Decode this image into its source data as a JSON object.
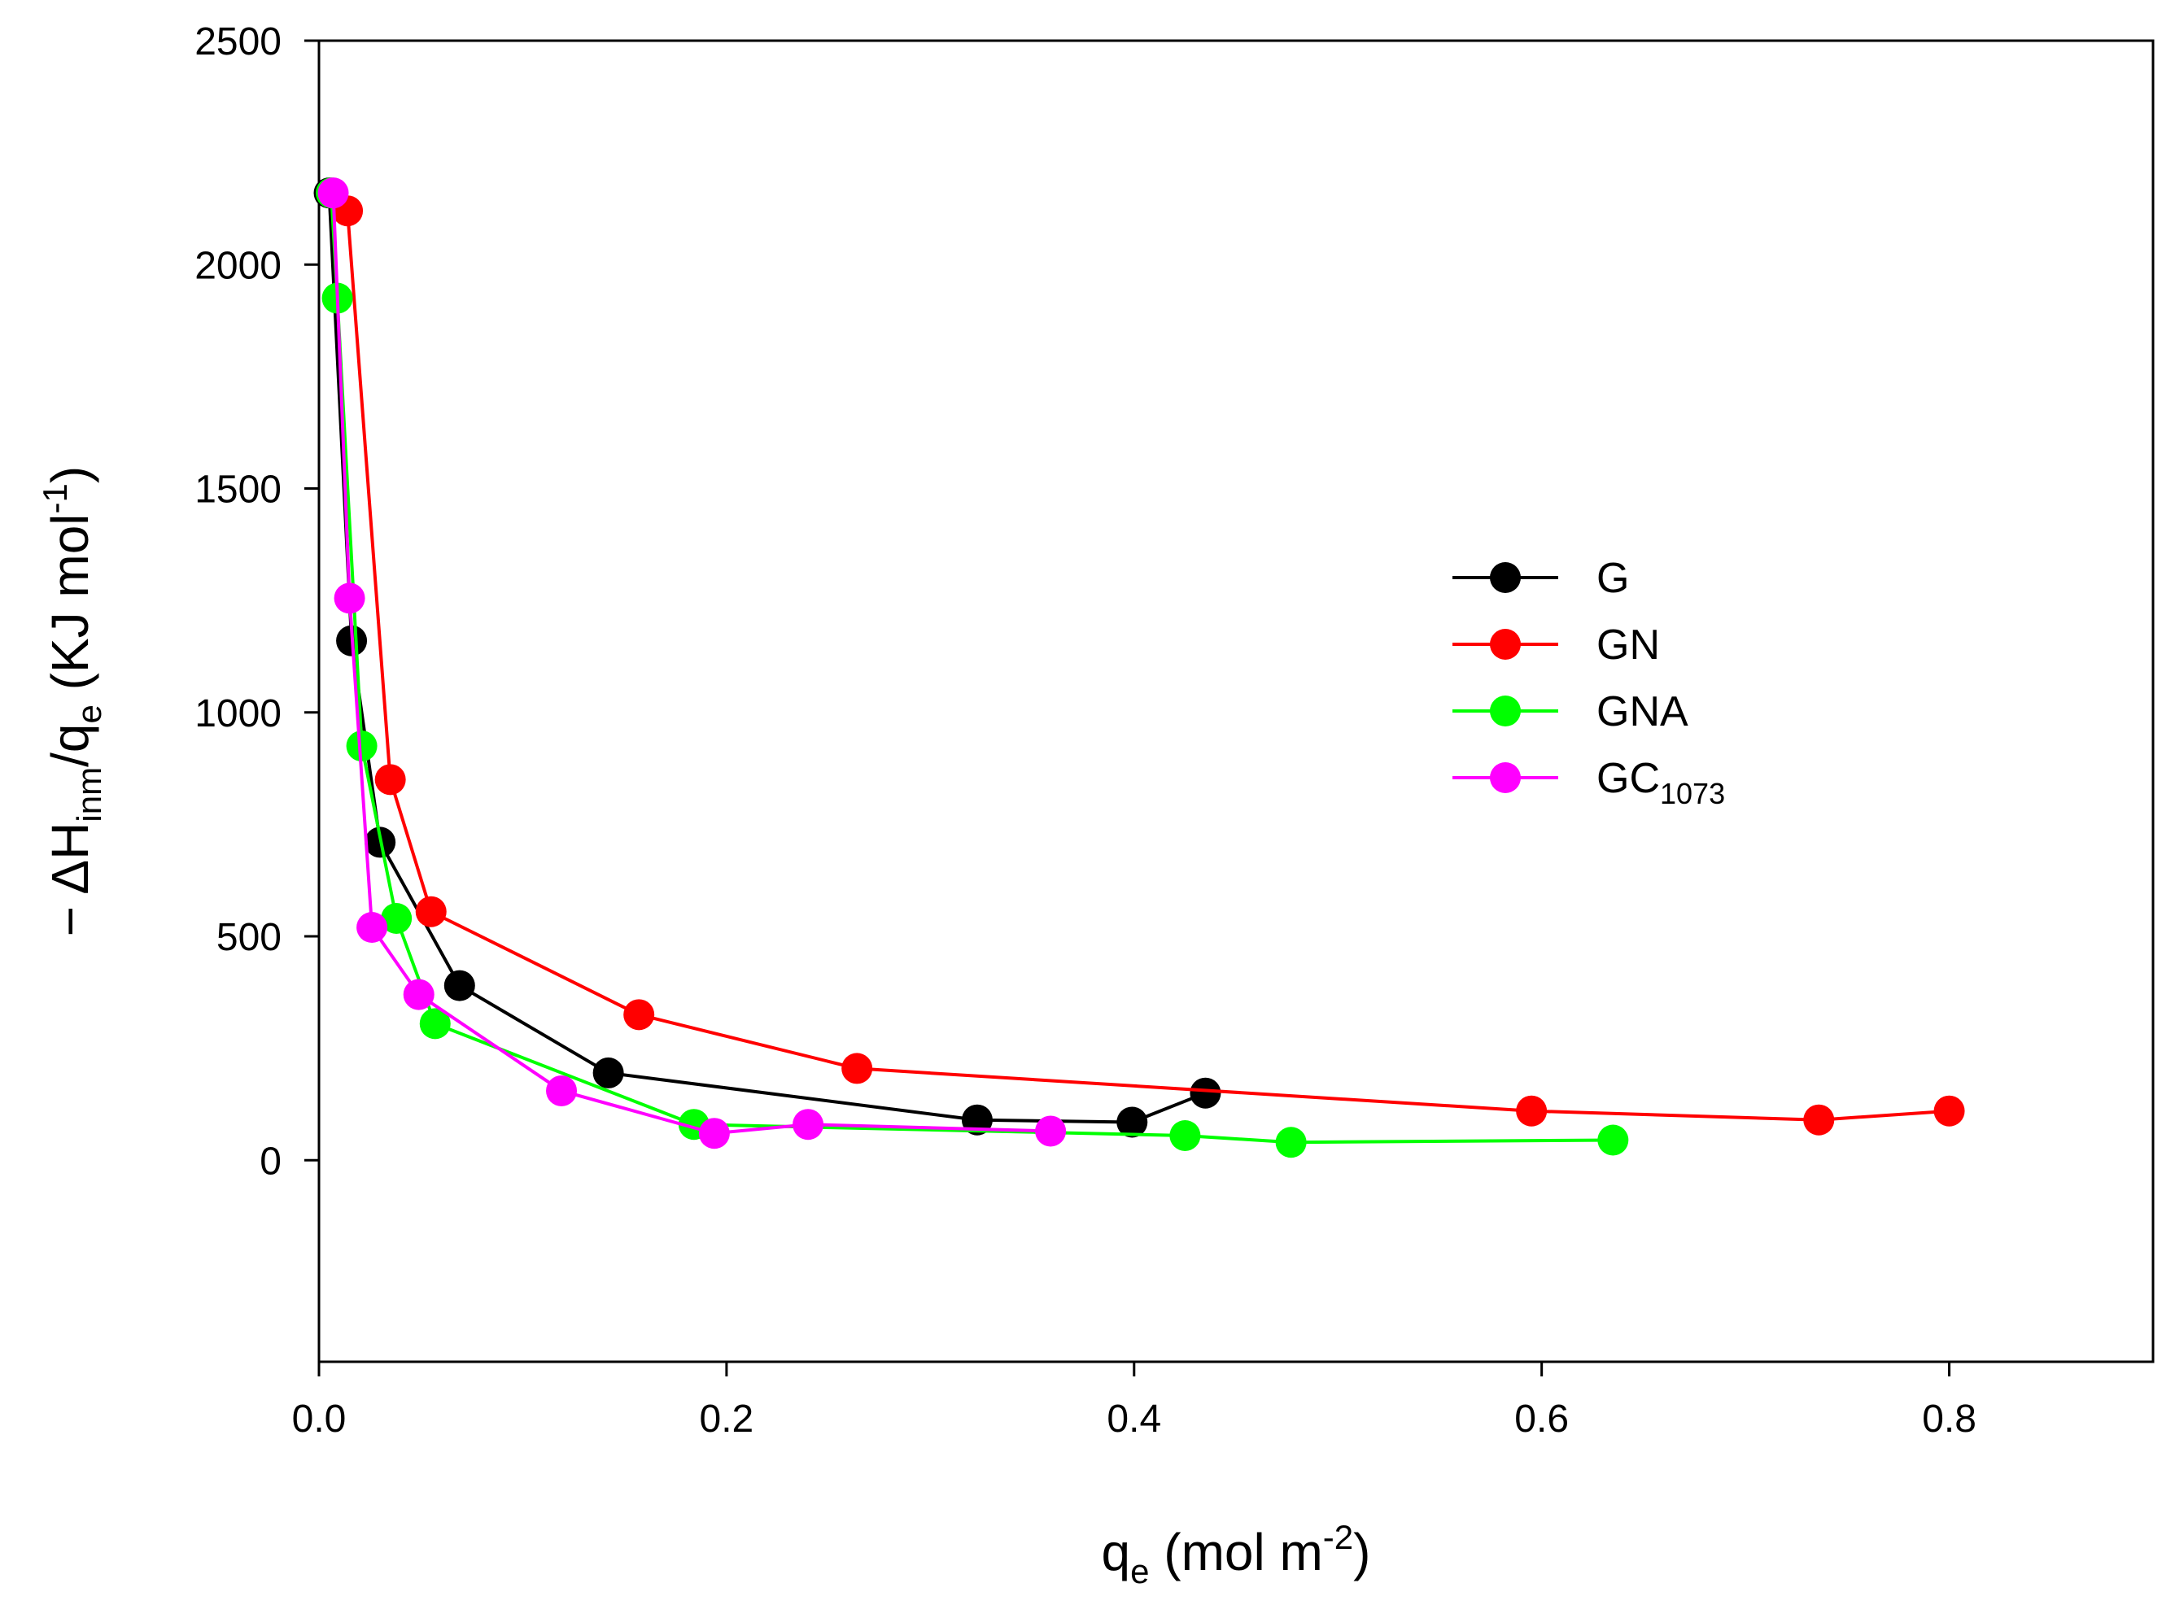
{
  "chart_data": {
    "type": "line",
    "title": "",
    "xlabel": {
      "main": "q",
      "sub": "e",
      "rest": " (mol m",
      "sup": "-2",
      "end": ")"
    },
    "ylabel": {
      "prefix": "− ΔH",
      "sub1": "inm",
      "mid": "/q",
      "sub2": "e",
      "rest": " (KJ mol",
      "sup": "-1",
      "end": ")"
    },
    "xlim": [
      0,
      0.9
    ],
    "ylim": [
      -450,
      2500
    ],
    "x_ticks": [
      0.0,
      0.2,
      0.4,
      0.6,
      0.8
    ],
    "x_tick_labels": [
      "0.0",
      "0.2",
      "0.4",
      "0.6",
      "0.8"
    ],
    "y_ticks": [
      0,
      500,
      1000,
      1500,
      2000,
      2500
    ],
    "y_tick_labels": [
      "0",
      "500",
      "1000",
      "1500",
      "2000",
      "2500"
    ],
    "grid": false,
    "legend_position": "right-center",
    "series": [
      {
        "name": "G",
        "label_main": "G",
        "label_sub": "",
        "color": "#000000",
        "x": [
          0.005,
          0.016,
          0.03,
          0.069,
          0.142,
          0.323,
          0.399,
          0.435
        ],
        "y": [
          2160,
          1160,
          710,
          390,
          195,
          90,
          85,
          150
        ]
      },
      {
        "name": "GN",
        "label_main": "GN",
        "label_sub": "",
        "color": "#ff0000",
        "x": [
          0.014,
          0.035,
          0.055,
          0.157,
          0.264,
          0.595,
          0.736,
          0.8
        ],
        "y": [
          2120,
          850,
          555,
          325,
          205,
          110,
          90,
          110
        ]
      },
      {
        "name": "GNA",
        "label_main": "GNA",
        "label_sub": "",
        "color": "#00ff00",
        "x": [
          0.006,
          0.009,
          0.021,
          0.038,
          0.057,
          0.184,
          0.425,
          0.477,
          0.635
        ],
        "y": [
          2160,
          1925,
          925,
          540,
          305,
          80,
          55,
          40,
          45
        ]
      },
      {
        "name": "GC1073",
        "label_main": "GC",
        "label_sub": "1073",
        "color": "#ff00ff",
        "x": [
          0.007,
          0.015,
          0.026,
          0.049,
          0.119,
          0.194,
          0.24,
          0.359
        ],
        "y": [
          2160,
          1255,
          520,
          370,
          155,
          60,
          80,
          65
        ]
      }
    ]
  }
}
